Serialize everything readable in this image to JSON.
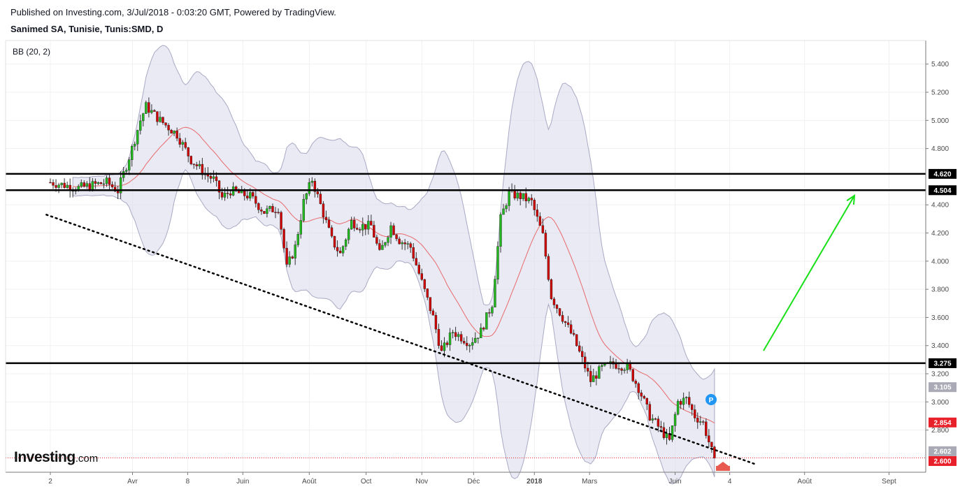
{
  "header": {
    "published": "Published on Investing.com, 3/Jul/2018 - 0:03:20 GMT, Powered by TradingView.",
    "symbol": "Sanimed SA, Tunisie, Tunis:SMD, D",
    "indicator": "BB (20, 2)"
  },
  "logo": {
    "brand": "Investing",
    "suffix": ".com"
  },
  "colors": {
    "up": "#22b91f",
    "down": "#d10000",
    "band_fill": "#dcdcec",
    "band_edge": "#a9a9c4",
    "ma": "#e8696b",
    "trend": "#000000",
    "arrow": "#17e017"
  },
  "chart_data": {
    "type": "candlestick",
    "title": "Sanimed SA, Tunisie, Tunis:SMD, D",
    "ylim": [
      2.56,
      5.48
    ],
    "y_ticks": [
      "5.400",
      "5.200",
      "5.000",
      "4.800",
      "4.400",
      "4.200",
      "4.000",
      "3.800",
      "3.600",
      "3.400",
      "3.200",
      "3.000",
      "2.800"
    ],
    "x_labels": [
      {
        "label": "2",
        "month": 0
      },
      {
        "label": "Avr",
        "month": 1.46
      },
      {
        "label": "8",
        "month": 2.44
      },
      {
        "label": "Juin",
        "month": 3.42
      },
      {
        "label": "Août",
        "month": 4.6
      },
      {
        "label": "Oct",
        "month": 5.61
      },
      {
        "label": "Nov",
        "month": 6.6
      },
      {
        "label": "Déc",
        "month": 7.52
      },
      {
        "label": "2018",
        "month": 8.6
      },
      {
        "label": "Mars",
        "month": 9.58
      },
      {
        "label": "Juin",
        "month": 11.1
      },
      {
        "label": "4",
        "month": 12.07
      },
      {
        "label": "Août",
        "month": 13.4
      },
      {
        "label": "Sept",
        "month": 14.9
      }
    ],
    "horizontal_levels": [
      {
        "value": 4.62,
        "label": "4.620"
      },
      {
        "value": 4.504,
        "label": "4.504"
      },
      {
        "value": 3.275,
        "label": "3.275"
      }
    ],
    "price_tags": [
      {
        "value": 3.105,
        "label": "3.105",
        "color": "#a9aab5"
      },
      {
        "value": 2.854,
        "label": "2.854",
        "color": "#e8202a"
      },
      {
        "value": 2.602,
        "label": "2.602",
        "color": "#a9aab5"
      },
      {
        "value": 2.6,
        "label": "2.600",
        "color": "#e8202a"
      }
    ],
    "current_price": 2.6,
    "marker_label": "P",
    "bollinger": {
      "period": 20,
      "stddev": 2
    },
    "key_points": [
      {
        "m": 0.0,
        "c": 4.56
      },
      {
        "m": 0.5,
        "c": 4.52
      },
      {
        "m": 1.0,
        "c": 4.56
      },
      {
        "m": 1.2,
        "c": 4.5
      },
      {
        "m": 1.45,
        "c": 4.8
      },
      {
        "m": 1.6,
        "c": 5.0
      },
      {
        "m": 1.7,
        "c": 5.1
      },
      {
        "m": 1.95,
        "c": 5.0
      },
      {
        "m": 2.25,
        "c": 4.9
      },
      {
        "m": 2.5,
        "c": 4.72
      },
      {
        "m": 2.75,
        "c": 4.62
      },
      {
        "m": 2.9,
        "c": 4.58
      },
      {
        "m": 3.05,
        "c": 4.45
      },
      {
        "m": 3.2,
        "c": 4.5
      },
      {
        "m": 3.55,
        "c": 4.46
      },
      {
        "m": 3.8,
        "c": 4.35
      },
      {
        "m": 4.05,
        "c": 4.38
      },
      {
        "m": 4.2,
        "c": 3.95
      },
      {
        "m": 4.35,
        "c": 4.1
      },
      {
        "m": 4.5,
        "c": 4.42
      },
      {
        "m": 4.65,
        "c": 4.58
      },
      {
        "m": 4.8,
        "c": 4.4
      },
      {
        "m": 5.0,
        "c": 4.15
      },
      {
        "m": 5.15,
        "c": 4.05
      },
      {
        "m": 5.35,
        "c": 4.28
      },
      {
        "m": 5.5,
        "c": 4.25
      },
      {
        "m": 5.7,
        "c": 4.25
      },
      {
        "m": 5.85,
        "c": 4.05
      },
      {
        "m": 6.05,
        "c": 4.25
      },
      {
        "m": 6.2,
        "c": 4.15
      },
      {
        "m": 6.4,
        "c": 4.1
      },
      {
        "m": 6.6,
        "c": 3.85
      },
      {
        "m": 6.8,
        "c": 3.6
      },
      {
        "m": 6.95,
        "c": 3.35
      },
      {
        "m": 7.15,
        "c": 3.5
      },
      {
        "m": 7.45,
        "c": 3.42
      },
      {
        "m": 7.65,
        "c": 3.5
      },
      {
        "m": 7.85,
        "c": 3.7
      },
      {
        "m": 8.0,
        "c": 4.3
      },
      {
        "m": 8.15,
        "c": 4.48
      },
      {
        "m": 8.35,
        "c": 4.46
      },
      {
        "m": 8.55,
        "c": 4.42
      },
      {
        "m": 8.75,
        "c": 4.18
      },
      {
        "m": 8.9,
        "c": 3.75
      },
      {
        "m": 9.1,
        "c": 3.6
      },
      {
        "m": 9.3,
        "c": 3.45
      },
      {
        "m": 9.45,
        "c": 3.3
      },
      {
        "m": 9.6,
        "c": 3.15
      },
      {
        "m": 9.8,
        "c": 3.24
      },
      {
        "m": 10.0,
        "c": 3.27
      },
      {
        "m": 10.25,
        "c": 3.25
      },
      {
        "m": 10.45,
        "c": 3.1
      },
      {
        "m": 10.65,
        "c": 2.9
      },
      {
        "m": 10.85,
        "c": 2.8
      },
      {
        "m": 11.0,
        "c": 2.72
      },
      {
        "m": 11.15,
        "c": 3.0
      },
      {
        "m": 11.3,
        "c": 3.02
      },
      {
        "m": 11.45,
        "c": 2.9
      },
      {
        "m": 11.6,
        "c": 2.85
      },
      {
        "m": 11.75,
        "c": 2.65
      },
      {
        "m": 11.8,
        "c": 2.6
      }
    ]
  }
}
